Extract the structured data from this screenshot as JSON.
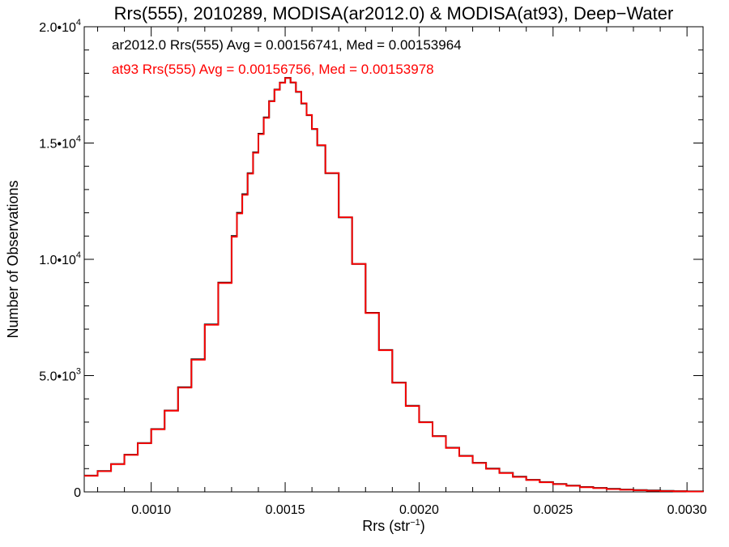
{
  "chart_data": {
    "type": "line",
    "title": "Rrs(555), 2010289, MODISA(ar2012.0) & MODISA(at93), Deep−Water",
    "xlabel": "Rrs (str",
    "xlabel_sup": "−1",
    "xlabel_end": ")",
    "ylabel": "Number of Observations",
    "xlim": [
      0.00075,
      0.00306
    ],
    "ylim": [
      0,
      20000
    ],
    "x_ticks": [
      {
        "value": 0.001,
        "label": "0.0010"
      },
      {
        "value": 0.0015,
        "label": "0.0015"
      },
      {
        "value": 0.002,
        "label": "0.0020"
      },
      {
        "value": 0.0025,
        "label": "0.0025"
      },
      {
        "value": 0.003,
        "label": "0.0030"
      }
    ],
    "y_ticks": [
      {
        "value": 0,
        "label": "0",
        "sup": ""
      },
      {
        "value": 5000,
        "label": "5.0•10",
        "sup": "3"
      },
      {
        "value": 10000,
        "label": "1.0•10",
        "sup": "4"
      },
      {
        "value": 15000,
        "label": "1.5•10",
        "sup": "4"
      },
      {
        "value": 20000,
        "label": "2.0•10",
        "sup": "4"
      }
    ],
    "annotations": [
      {
        "text": "ar2012.0 Rrs(555) Avg = 0.00156741, Med = 0.00153964",
        "color": "#000000"
      },
      {
        "text": "at93 Rrs(555) Avg = 0.00156756, Med = 0.00153978",
        "color": "#ff0000"
      }
    ],
    "series": [
      {
        "color": "#000000",
        "x": [
          0.00075,
          0.0008,
          0.00085,
          0.0009,
          0.00095,
          0.001,
          0.00105,
          0.0011,
          0.00115,
          0.0012,
          0.00125,
          0.0013,
          0.00132,
          0.00134,
          0.00136,
          0.00138,
          0.0014,
          0.00142,
          0.00144,
          0.00146,
          0.00148,
          0.0015,
          0.00152,
          0.00154,
          0.00156,
          0.00158,
          0.0016,
          0.00162,
          0.00165,
          0.0017,
          0.00175,
          0.0018,
          0.00185,
          0.0019,
          0.00195,
          0.002,
          0.00205,
          0.0021,
          0.00215,
          0.0022,
          0.00225,
          0.0023,
          0.00235,
          0.0024,
          0.00245,
          0.0025,
          0.00255,
          0.0026,
          0.00265,
          0.0027,
          0.00275,
          0.0028,
          0.00285,
          0.0029,
          0.00295,
          0.003,
          0.00306
        ],
        "y": [
          700,
          900,
          1200,
          1600,
          2100,
          2700,
          3500,
          4500,
          5700,
          7200,
          9000,
          11000,
          12000,
          12800,
          13700,
          14600,
          15400,
          16100,
          16800,
          17300,
          17600,
          17800,
          17600,
          17200,
          16700,
          16200,
          15600,
          14900,
          13700,
          11800,
          9800,
          7700,
          6100,
          4700,
          3700,
          3000,
          2400,
          1900,
          1550,
          1250,
          1000,
          820,
          650,
          520,
          420,
          340,
          270,
          210,
          170,
          130,
          100,
          80,
          60,
          45,
          30,
          20,
          15
        ]
      },
      {
        "color": "#ff0000",
        "x": [
          0.00075,
          0.0008,
          0.00085,
          0.0009,
          0.00095,
          0.001,
          0.00105,
          0.0011,
          0.00115,
          0.0012,
          0.00125,
          0.0013,
          0.00132,
          0.00134,
          0.00136,
          0.00138,
          0.0014,
          0.00142,
          0.00144,
          0.00146,
          0.00148,
          0.0015,
          0.00152,
          0.00154,
          0.00156,
          0.00158,
          0.0016,
          0.00162,
          0.00165,
          0.0017,
          0.00175,
          0.0018,
          0.00185,
          0.0019,
          0.00195,
          0.002,
          0.00205,
          0.0021,
          0.00215,
          0.0022,
          0.00225,
          0.0023,
          0.00235,
          0.0024,
          0.00245,
          0.0025,
          0.00255,
          0.0026,
          0.00265,
          0.0027,
          0.00275,
          0.0028,
          0.00285,
          0.0029,
          0.00295,
          0.003,
          0.00306
        ],
        "y": [
          690,
          890,
          1190,
          1590,
          2090,
          2690,
          3490,
          4480,
          5680,
          7180,
          8980,
          10970,
          11970,
          12770,
          13680,
          14580,
          15380,
          16080,
          16790,
          17290,
          17590,
          17790,
          17610,
          17210,
          16710,
          16210,
          15610,
          14910,
          13710,
          11810,
          9800,
          7690,
          6090,
          4690,
          3690,
          2990,
          2390,
          1890,
          1540,
          1240,
          990,
          810,
          640,
          510,
          410,
          330,
          260,
          200,
          160,
          120,
          90,
          70,
          50,
          35,
          25,
          15,
          10
        ]
      }
    ]
  }
}
